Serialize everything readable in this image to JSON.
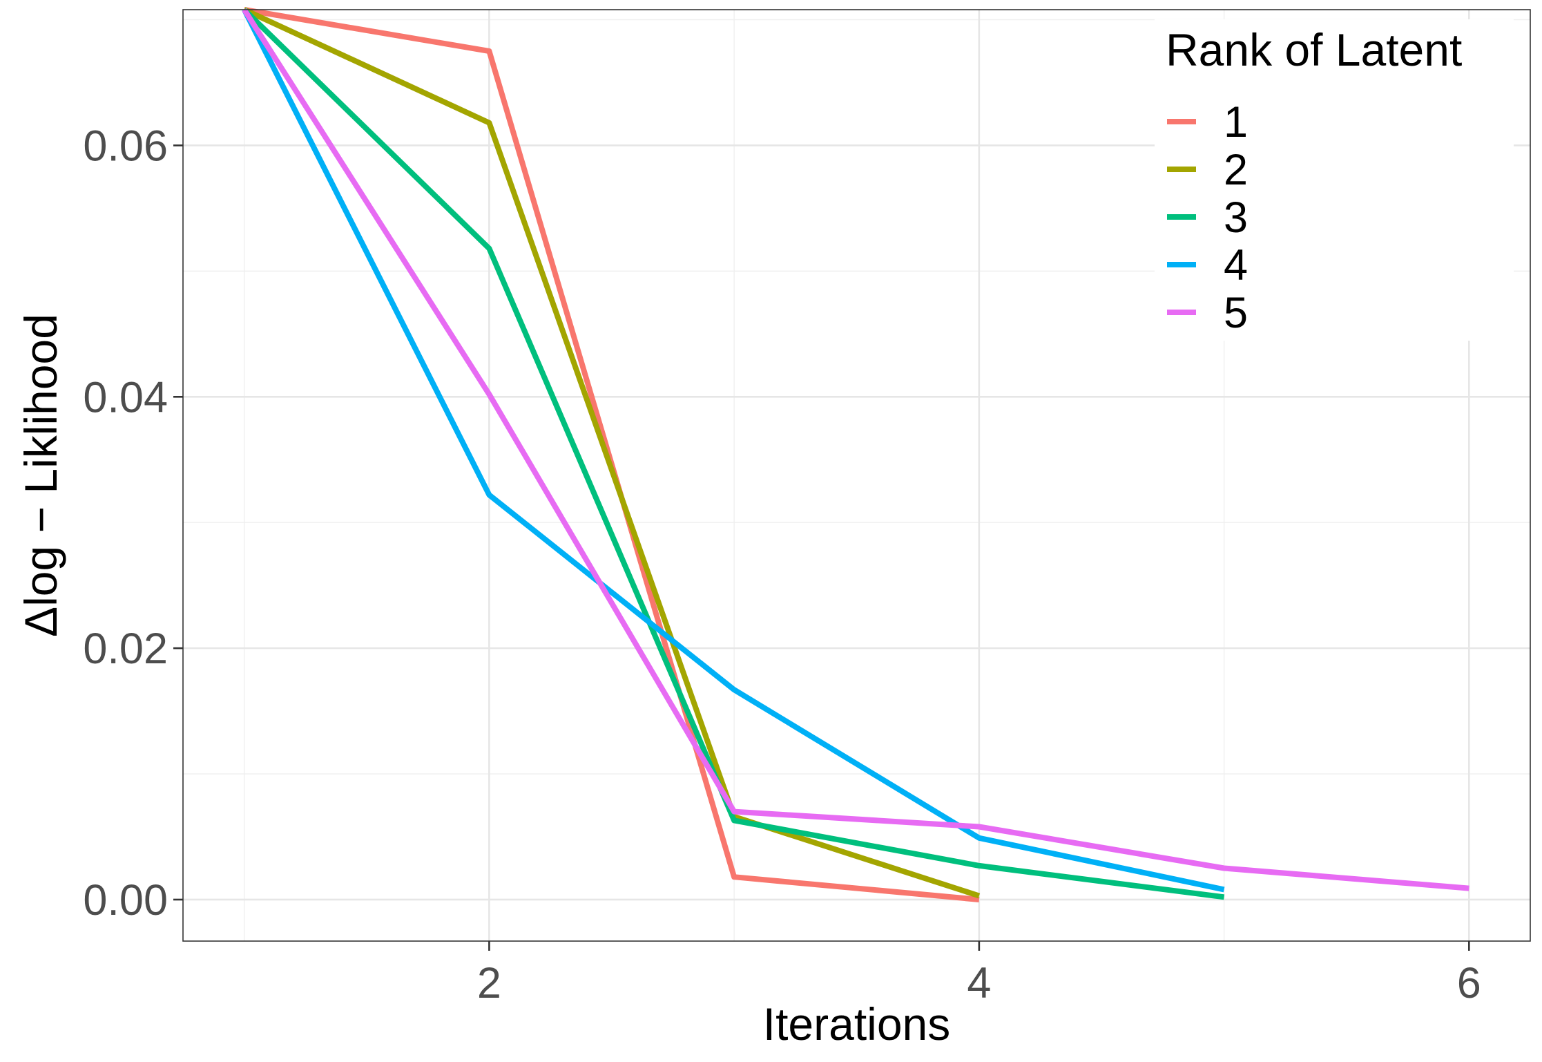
{
  "chart_data": {
    "type": "line",
    "xlabel": "Iterations",
    "ylabel": "Δlog − Liklihood",
    "xlim": [
      0.75,
      6.25
    ],
    "ylim": [
      -0.0033,
      0.0708
    ],
    "x_ticks": [
      2,
      4,
      6
    ],
    "x_tick_labels": [
      "2",
      "4",
      "6"
    ],
    "y_ticks": [
      0.0,
      0.02,
      0.04,
      0.06
    ],
    "y_tick_labels": [
      "0.00",
      "0.02",
      "0.04",
      "0.06"
    ],
    "grid": true,
    "legend": {
      "title": "Rank of Latent",
      "position": "top-right"
    },
    "series": [
      {
        "name": "1",
        "color": "#F8766D",
        "points": [
          [
            1,
            0.0708
          ],
          [
            2,
            0.0675
          ],
          [
            3,
            0.0018
          ],
          [
            4,
            0.0
          ]
        ]
      },
      {
        "name": "2",
        "color": "#A3A500",
        "points": [
          [
            1,
            0.0708
          ],
          [
            2,
            0.0618
          ],
          [
            3,
            0.0066
          ],
          [
            4,
            0.0003
          ]
        ]
      },
      {
        "name": "3",
        "color": "#00BF7D",
        "points": [
          [
            1,
            0.0708
          ],
          [
            2,
            0.0518
          ],
          [
            3,
            0.0063
          ],
          [
            4,
            0.0027
          ],
          [
            5,
            0.0002
          ]
        ]
      },
      {
        "name": "4",
        "color": "#00B0F6",
        "points": [
          [
            1,
            0.0708
          ],
          [
            2,
            0.0322
          ],
          [
            3,
            0.0167
          ],
          [
            4,
            0.0049
          ],
          [
            5,
            0.0008
          ]
        ]
      },
      {
        "name": "5",
        "color": "#E76BF3",
        "points": [
          [
            1,
            0.0708
          ],
          [
            2,
            0.0402
          ],
          [
            3,
            0.007
          ],
          [
            4,
            0.0058
          ],
          [
            5,
            0.0025
          ],
          [
            6,
            0.0009
          ]
        ]
      }
    ]
  }
}
